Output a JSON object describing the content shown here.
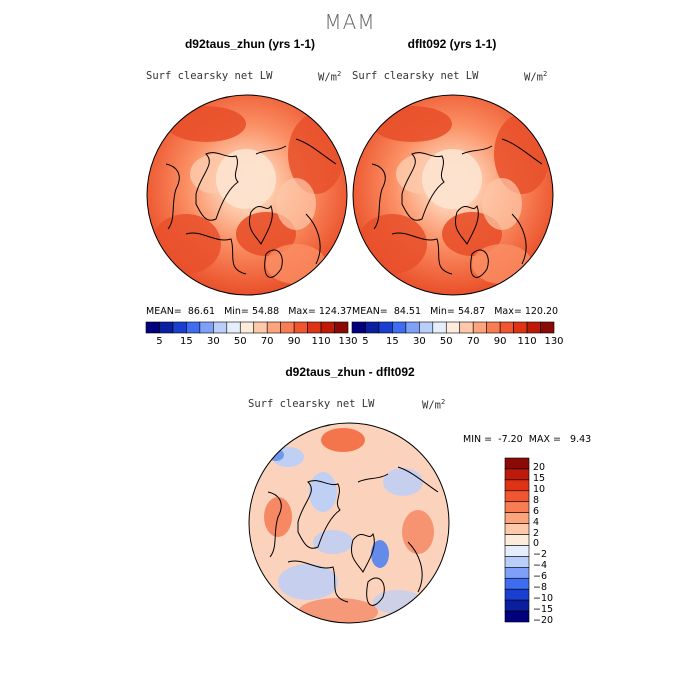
{
  "title": "MAM",
  "panels": [
    {
      "case": "d92taus_zhun (yrs 1-1)",
      "variable": "Surf clearsky net LW",
      "units_base": "W/m",
      "units_exp": "2",
      "stats": {
        "mean_label": "MEAN=",
        "mean": "86.61",
        "min_label": "Min=",
        "min": "54.88",
        "max_label": "Max=",
        "max": "124.37"
      }
    },
    {
      "case": "dflt092 (yrs 1-1)",
      "variable": "Surf clearsky net LW",
      "units_base": "W/m",
      "units_exp": "2",
      "stats": {
        "mean_label": "MEAN=",
        "mean": "84.51",
        "min_label": "Min=",
        "min": "54.87",
        "max_label": "Max=",
        "max": "120.20"
      }
    }
  ],
  "abs_colorbar": {
    "colors": [
      "#00007f",
      "#0a1fa0",
      "#1a3fd0",
      "#3f6df2",
      "#7ea0f7",
      "#b9cef9",
      "#e5eefc",
      "#fdebdc",
      "#fdc9aa",
      "#fca47c",
      "#f97d53",
      "#f15630",
      "#df3315",
      "#bd1a0a",
      "#8b0a05"
    ],
    "ticks": [
      "5",
      "15",
      "30",
      "50",
      "70",
      "90",
      "110",
      "130"
    ]
  },
  "diff_panel": {
    "case": "d92taus_zhun - dflt092",
    "variable": "Surf clearsky net LW",
    "units_base": "W/m",
    "units_exp": "2",
    "stats": {
      "min_label": "MIN =",
      "min": "-7.20",
      "max_label": "MAX =",
      "max": "9.43"
    }
  },
  "diff_colorbar": {
    "colors": [
      "#8b0a05",
      "#bd1a0a",
      "#df3315",
      "#f15630",
      "#f97d53",
      "#fca47c",
      "#fdc9aa",
      "#fdebdc",
      "#e5eefc",
      "#b9cef9",
      "#7ea0f7",
      "#3f6df2",
      "#1a3fd0",
      "#0a1fa0",
      "#00007f"
    ],
    "ticks": [
      "20",
      "15",
      "10",
      "8",
      "6",
      "4",
      "2",
      "0",
      "−2",
      "−4",
      "−6",
      "−8",
      "−10",
      "−15",
      "−20"
    ]
  },
  "map_colors": {
    "ocean_warm": "#f0643c",
    "ring": "#e8502a",
    "mid": "#fb8f64",
    "light": "#fdc9aa",
    "palest": "#fde3cf",
    "diff_base": "#fbd3bd",
    "diff_blue": "#b9cef9",
    "diff_mid_blue": "#5c87ec",
    "diff_hot": "#f36a3f"
  }
}
